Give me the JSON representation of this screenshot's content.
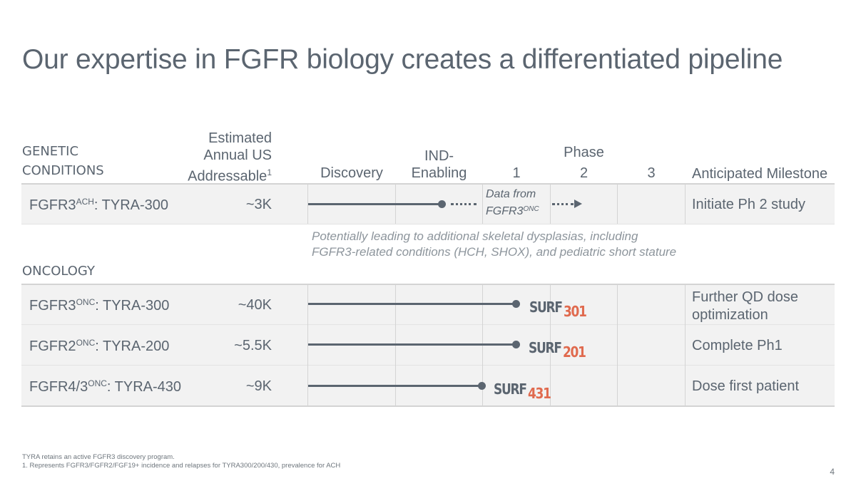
{
  "slide": {
    "title": "Our expertise in FGFR biology creates a differentiated pipeline",
    "page_number": "4"
  },
  "columns": {
    "genetic_label_line1": "GENETIC",
    "genetic_label_line2": "CONDITIONS",
    "addressable_line1": "Estimated",
    "addressable_line2": "Annual US",
    "addressable_line3": "Addressable",
    "addressable_sup": "1",
    "discovery": "Discovery",
    "ind_line1": "IND-",
    "ind_line2": "Enabling",
    "phase": "Phase",
    "phase1": "1",
    "phase2": "2",
    "phase3": "3",
    "milestone": "Anticipated Milestone"
  },
  "genetic_rows": [
    {
      "program_prefix": "FGFR3",
      "program_sup": "ACH",
      "program_suffix": ": TYRA-300",
      "addressable": "~3K",
      "data_from_line1": "Data from",
      "data_from_line2": "FGFR3",
      "data_from_sup": "ONC",
      "milestone": "Initiate Ph 2 study"
    }
  ],
  "genetic_note": {
    "line1": "Potentially leading to additional skeletal dysplasias, including",
    "line2": "FGFR3-related conditions (HCH, SHOX), and pediatric short stature"
  },
  "oncology_label": "ONCOLOGY",
  "oncology_rows": [
    {
      "program_prefix": "FGFR3",
      "program_sup": "ONC",
      "program_suffix": ": TYRA-300",
      "addressable": "~40K",
      "trial_word": "SURF",
      "trial_num": "301",
      "milestone_line1": "Further QD dose",
      "milestone_line2": "optimization"
    },
    {
      "program_prefix": "FGFR2",
      "program_sup": "ONC",
      "program_suffix": ": TYRA-200",
      "addressable": "~5.5K",
      "trial_word": "SURF",
      "trial_num": "201",
      "milestone": "Complete Ph1"
    },
    {
      "program_prefix": "FGFR4/3",
      "program_sup": "ONC",
      "program_suffix": ":  TYRA-430",
      "addressable": "~9K",
      "trial_word": "SURF",
      "trial_num": "431",
      "milestone": "Dose first patient"
    }
  ],
  "footnotes": {
    "line1": "TYRA retains an active FGFR3 discovery program.",
    "line2": "1. Represents FGFR3/FGFR2/FGF19+ incidence and relapses for TYRA300/200/430, prevalence for ACH"
  },
  "colors": {
    "text": "#5b6570",
    "accent": "#e06a4e",
    "row_bg": "#f2f2f2"
  }
}
